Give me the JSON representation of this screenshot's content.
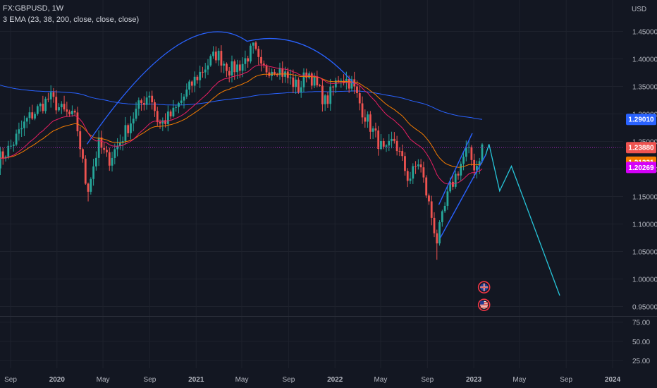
{
  "header": {
    "symbol_line": "FX:GBPUSD, 1W",
    "indicator_line": "3 EMA (23, 38, 200, close, close, close)"
  },
  "colors": {
    "background": "#131722",
    "grid": "#1e222d",
    "up": "#26a69a",
    "down": "#ef5350",
    "ema23": "#e91e63",
    "ema38": "#f57c00",
    "ema200": "#2962ff",
    "arc": "#2962ff",
    "projection": "#26c6da",
    "price_line": "#9c27b0"
  },
  "chart_data": [
    {
      "type": "candlestick",
      "symbol": "FX:GBPUSD",
      "interval": "1W",
      "y_axis_unit": "USD",
      "ylim": [
        0.915,
        1.5
      ],
      "y_ticks": [
        "1.45000",
        "1.40000",
        "1.35000",
        "1.30000",
        "1.25000",
        "1.20000",
        "1.15000",
        "1.10000",
        "1.05000",
        "1.00000",
        "0.95000"
      ],
      "x_ticks": [
        "Sep",
        "2020",
        "May",
        "Sep",
        "2021",
        "May",
        "Sep",
        "2022",
        "May",
        "Sep",
        "2023",
        "May",
        "Sep",
        "2024"
      ],
      "x_tick_dates": [
        "2019-09-01",
        "2020-01-01",
        "2020-05-01",
        "2020-09-01",
        "2021-01-01",
        "2021-05-01",
        "2021-09-01",
        "2022-01-01",
        "2022-05-01",
        "2022-09-01",
        "2023-01-01",
        "2023-05-01",
        "2023-09-01",
        "2024-01-01"
      ],
      "price_path": [
        {
          "date": "2019-07-29",
          "close": 1.215
        },
        {
          "date": "2019-09-01",
          "close": 1.24
        },
        {
          "date": "2019-10-15",
          "close": 1.29
        },
        {
          "date": "2019-12-13",
          "close": 1.33
        },
        {
          "date": "2020-01-15",
          "close": 1.305
        },
        {
          "date": "2020-02-20",
          "close": 1.29
        },
        {
          "date": "2020-03-20",
          "close": 1.16
        },
        {
          "date": "2020-04-20",
          "close": 1.245
        },
        {
          "date": "2020-05-15",
          "close": 1.215
        },
        {
          "date": "2020-06-15",
          "close": 1.25
        },
        {
          "date": "2020-07-31",
          "close": 1.31
        },
        {
          "date": "2020-09-01",
          "close": 1.34
        },
        {
          "date": "2020-09-25",
          "close": 1.28
        },
        {
          "date": "2020-11-01",
          "close": 1.3
        },
        {
          "date": "2020-12-31",
          "close": 1.365
        },
        {
          "date": "2021-02-24",
          "close": 1.41
        },
        {
          "date": "2021-03-31",
          "close": 1.38
        },
        {
          "date": "2021-05-01",
          "close": 1.39
        },
        {
          "date": "2021-06-01",
          "close": 1.42
        },
        {
          "date": "2021-06-20",
          "close": 1.38
        },
        {
          "date": "2021-08-01",
          "close": 1.385
        },
        {
          "date": "2021-09-30",
          "close": 1.345
        },
        {
          "date": "2021-10-20",
          "close": 1.38
        },
        {
          "date": "2021-12-08",
          "close": 1.32
        },
        {
          "date": "2022-01-13",
          "close": 1.37
        },
        {
          "date": "2022-02-15",
          "close": 1.355
        },
        {
          "date": "2022-03-15",
          "close": 1.305
        },
        {
          "date": "2022-05-13",
          "close": 1.225
        },
        {
          "date": "2022-06-05",
          "close": 1.255
        },
        {
          "date": "2022-07-14",
          "close": 1.18
        },
        {
          "date": "2022-08-10",
          "close": 1.215
        },
        {
          "date": "2022-09-26",
          "close": 1.07
        },
        {
          "date": "2022-10-28",
          "close": 1.16
        },
        {
          "date": "2022-12-14",
          "close": 1.235
        },
        {
          "date": "2023-01-06",
          "close": 1.2
        },
        {
          "date": "2023-01-23",
          "close": 1.24
        }
      ],
      "ema": [
        {
          "length": 23,
          "last_value": "1.20269",
          "color": "#e91e63"
        },
        {
          "length": 38,
          "last_value": "1.21231",
          "color": "#f57c00"
        },
        {
          "length": 200,
          "last_value": "1.29010",
          "color": "#2962ff"
        }
      ],
      "last_price": "1.23880",
      "drawings": {
        "arc": {
          "from": {
            "date": "2020-03-20",
            "price": 1.245
          },
          "peak": {
            "date": "2021-05-15",
            "price": 1.432
          },
          "to": {
            "date": "2022-02-20",
            "price": 1.355
          }
        },
        "channel_lower": [
          {
            "date": "2022-10-05",
            "price": 1.075
          },
          {
            "date": "2023-02-01",
            "price": 1.225
          }
        ],
        "channel_upper": [
          {
            "date": "2022-10-01",
            "price": 1.135
          },
          {
            "date": "2022-12-28",
            "price": 1.265
          }
        ],
        "projection": [
          {
            "date": "2023-02-10",
            "price": 1.245
          },
          {
            "date": "2023-03-10",
            "price": 1.16
          },
          {
            "date": "2023-04-10",
            "price": 1.205
          },
          {
            "date": "2023-08-15",
            "price": 0.97
          }
        ],
        "event_icons": [
          {
            "name": "gb-flag-icon",
            "date": "2023-01-28",
            "price": 0.985
          },
          {
            "name": "us-flag-icon",
            "date": "2023-01-28",
            "price": 0.953
          }
        ]
      }
    },
    {
      "type": "line",
      "pane": "oscillator",
      "ylim": [
        15,
        82
      ],
      "y_ticks": [
        "75.00",
        "50.00",
        "25.00"
      ]
    }
  ]
}
